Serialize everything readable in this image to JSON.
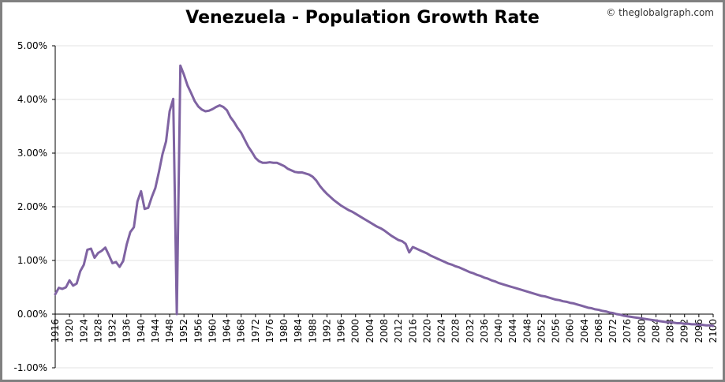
{
  "chart_data": {
    "type": "line",
    "title": "Venezuela - Population Growth Rate",
    "source_credit": "© theglobalgraph.com",
    "xlabel": "",
    "ylabel": "",
    "ylim": [
      -1,
      5
    ],
    "xlim": [
      1916,
      2100
    ],
    "y_ticks": [
      5,
      4,
      3,
      2,
      1,
      0,
      -1
    ],
    "y_tick_labels": [
      "5.00%",
      "4.00%",
      "3.00%",
      "2.00%",
      "1.00%",
      "0.00%",
      "-1.00%"
    ],
    "x_ticks": [
      1916,
      1920,
      1924,
      1928,
      1932,
      1936,
      1940,
      1944,
      1948,
      1952,
      1956,
      1960,
      1964,
      1968,
      1972,
      1976,
      1980,
      1984,
      1988,
      1992,
      1996,
      2000,
      2004,
      2008,
      2012,
      2016,
      2020,
      2024,
      2028,
      2032,
      2036,
      2040,
      2044,
      2048,
      2052,
      2056,
      2060,
      2064,
      2068,
      2072,
      2076,
      2080,
      2084,
      2088,
      2092,
      2096,
      2100
    ],
    "grid": true,
    "legend": "none",
    "series": [
      {
        "name": "Venezuela population growth rate (%)",
        "color": "#7f63a2",
        "points": [
          [
            1916,
            0.37
          ],
          [
            1917,
            0.49
          ],
          [
            1918,
            0.47
          ],
          [
            1919,
            0.5
          ],
          [
            1920,
            0.63
          ],
          [
            1921,
            0.53
          ],
          [
            1922,
            0.57
          ],
          [
            1923,
            0.8
          ],
          [
            1924,
            0.92
          ],
          [
            1925,
            1.2
          ],
          [
            1926,
            1.22
          ],
          [
            1927,
            1.05
          ],
          [
            1928,
            1.14
          ],
          [
            1929,
            1.18
          ],
          [
            1930,
            1.24
          ],
          [
            1931,
            1.1
          ],
          [
            1932,
            0.95
          ],
          [
            1933,
            0.97
          ],
          [
            1934,
            0.88
          ],
          [
            1935,
            0.99
          ],
          [
            1936,
            1.3
          ],
          [
            1937,
            1.53
          ],
          [
            1938,
            1.62
          ],
          [
            1939,
            2.1
          ],
          [
            1940,
            2.29
          ],
          [
            1941,
            1.96
          ],
          [
            1942,
            1.98
          ],
          [
            1943,
            2.18
          ],
          [
            1944,
            2.35
          ],
          [
            1945,
            2.65
          ],
          [
            1946,
            2.98
          ],
          [
            1947,
            3.22
          ],
          [
            1948,
            3.78
          ],
          [
            1949,
            4.01
          ],
          [
            1950,
            0.0
          ],
          [
            1951,
            4.63
          ],
          [
            1952,
            4.46
          ],
          [
            1953,
            4.26
          ],
          [
            1954,
            4.12
          ],
          [
            1955,
            3.97
          ],
          [
            1956,
            3.87
          ],
          [
            1957,
            3.81
          ],
          [
            1958,
            3.78
          ],
          [
            1959,
            3.79
          ],
          [
            1960,
            3.82
          ],
          [
            1961,
            3.86
          ],
          [
            1962,
            3.89
          ],
          [
            1963,
            3.86
          ],
          [
            1964,
            3.8
          ],
          [
            1965,
            3.67
          ],
          [
            1966,
            3.58
          ],
          [
            1967,
            3.47
          ],
          [
            1968,
            3.38
          ],
          [
            1969,
            3.25
          ],
          [
            1970,
            3.12
          ],
          [
            1971,
            3.02
          ],
          [
            1972,
            2.91
          ],
          [
            1973,
            2.85
          ],
          [
            1974,
            2.82
          ],
          [
            1975,
            2.82
          ],
          [
            1976,
            2.83
          ],
          [
            1977,
            2.82
          ],
          [
            1978,
            2.82
          ],
          [
            1979,
            2.79
          ],
          [
            1980,
            2.76
          ],
          [
            1981,
            2.71
          ],
          [
            1982,
            2.68
          ],
          [
            1983,
            2.65
          ],
          [
            1984,
            2.64
          ],
          [
            1985,
            2.64
          ],
          [
            1986,
            2.62
          ],
          [
            1987,
            2.6
          ],
          [
            1988,
            2.56
          ],
          [
            1989,
            2.49
          ],
          [
            1990,
            2.39
          ],
          [
            1991,
            2.31
          ],
          [
            1992,
            2.24
          ],
          [
            1993,
            2.18
          ],
          [
            1994,
            2.12
          ],
          [
            1995,
            2.07
          ],
          [
            1996,
            2.02
          ],
          [
            1997,
            1.98
          ],
          [
            1998,
            1.94
          ],
          [
            1999,
            1.91
          ],
          [
            2000,
            1.87
          ],
          [
            2001,
            1.83
          ],
          [
            2002,
            1.79
          ],
          [
            2003,
            1.75
          ],
          [
            2004,
            1.71
          ],
          [
            2005,
            1.67
          ],
          [
            2006,
            1.63
          ],
          [
            2007,
            1.6
          ],
          [
            2008,
            1.56
          ],
          [
            2009,
            1.51
          ],
          [
            2010,
            1.46
          ],
          [
            2011,
            1.42
          ],
          [
            2012,
            1.38
          ],
          [
            2013,
            1.36
          ],
          [
            2014,
            1.31
          ],
          [
            2015,
            1.15
          ],
          [
            2016,
            1.25
          ],
          [
            2017,
            1.22
          ],
          [
            2018,
            1.19
          ],
          [
            2019,
            1.16
          ],
          [
            2020,
            1.13
          ],
          [
            2021,
            1.09
          ],
          [
            2022,
            1.06
          ],
          [
            2023,
            1.03
          ],
          [
            2024,
            1.0
          ],
          [
            2025,
            0.97
          ],
          [
            2026,
            0.94
          ],
          [
            2027,
            0.92
          ],
          [
            2028,
            0.89
          ],
          [
            2029,
            0.87
          ],
          [
            2030,
            0.84
          ],
          [
            2031,
            0.81
          ],
          [
            2032,
            0.78
          ],
          [
            2033,
            0.76
          ],
          [
            2034,
            0.73
          ],
          [
            2035,
            0.71
          ],
          [
            2036,
            0.68
          ],
          [
            2037,
            0.66
          ],
          [
            2038,
            0.63
          ],
          [
            2039,
            0.61
          ],
          [
            2040,
            0.58
          ],
          [
            2041,
            0.56
          ],
          [
            2042,
            0.54
          ],
          [
            2043,
            0.52
          ],
          [
            2044,
            0.5
          ],
          [
            2045,
            0.48
          ],
          [
            2046,
            0.46
          ],
          [
            2047,
            0.44
          ],
          [
            2048,
            0.42
          ],
          [
            2049,
            0.4
          ],
          [
            2050,
            0.38
          ],
          [
            2051,
            0.36
          ],
          [
            2052,
            0.34
          ],
          [
            2053,
            0.33
          ],
          [
            2054,
            0.31
          ],
          [
            2055,
            0.29
          ],
          [
            2056,
            0.27
          ],
          [
            2057,
            0.26
          ],
          [
            2058,
            0.24
          ],
          [
            2059,
            0.23
          ],
          [
            2060,
            0.21
          ],
          [
            2061,
            0.2
          ],
          [
            2062,
            0.18
          ],
          [
            2063,
            0.16
          ],
          [
            2064,
            0.14
          ],
          [
            2065,
            0.12
          ],
          [
            2066,
            0.11
          ],
          [
            2067,
            0.09
          ],
          [
            2068,
            0.08
          ],
          [
            2069,
            0.06
          ],
          [
            2070,
            0.05
          ],
          [
            2071,
            0.03
          ],
          [
            2072,
            0.02
          ],
          [
            2073,
            0.0
          ],
          [
            2074,
            -0.01
          ],
          [
            2075,
            -0.03
          ],
          [
            2076,
            -0.04
          ],
          [
            2077,
            -0.05
          ],
          [
            2078,
            -0.06
          ],
          [
            2079,
            -0.07
          ],
          [
            2080,
            -0.08
          ],
          [
            2081,
            -0.09
          ],
          [
            2082,
            -0.1
          ],
          [
            2083,
            -0.11
          ],
          [
            2084,
            -0.12
          ],
          [
            2085,
            -0.13
          ],
          [
            2086,
            -0.14
          ],
          [
            2087,
            -0.15
          ],
          [
            2088,
            -0.15
          ],
          [
            2089,
            -0.16
          ],
          [
            2090,
            -0.17
          ],
          [
            2091,
            -0.17
          ],
          [
            2092,
            -0.18
          ],
          [
            2093,
            -0.18
          ],
          [
            2094,
            -0.19
          ],
          [
            2095,
            -0.19
          ],
          [
            2096,
            -0.2
          ],
          [
            2097,
            -0.2
          ],
          [
            2098,
            -0.21
          ],
          [
            2099,
            -0.21
          ],
          [
            2100,
            -0.22
          ]
        ]
      }
    ]
  }
}
